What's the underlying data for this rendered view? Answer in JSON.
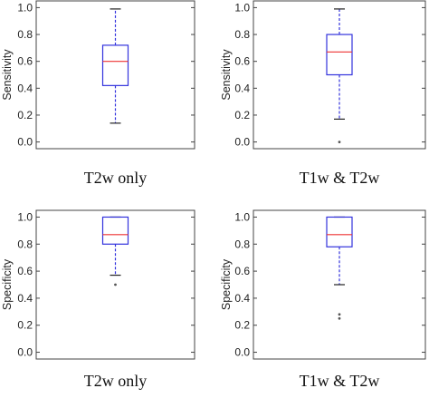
{
  "chart_data": [
    {
      "type": "box",
      "title": "T2w only",
      "ylabel": "Sensitivity",
      "ylim": [
        -0.05,
        1.05
      ],
      "yticks": [
        "0.0",
        "0.2",
        "0.4",
        "0.6",
        "0.8",
        "1.0"
      ],
      "box": {
        "whisker_low": 0.14,
        "q1": 0.42,
        "median": 0.6,
        "q3": 0.72,
        "whisker_high": 0.99
      },
      "outliers": [],
      "grid": false
    },
    {
      "type": "box",
      "title": "T1w & T2w",
      "ylabel": "Sensitivity",
      "ylim": [
        -0.05,
        1.05
      ],
      "yticks": [
        "0.0",
        "0.2",
        "0.4",
        "0.6",
        "0.8",
        "1.0"
      ],
      "box": {
        "whisker_low": 0.17,
        "q1": 0.5,
        "median": 0.67,
        "q3": 0.8,
        "whisker_high": 0.99
      },
      "outliers": [
        0.0
      ],
      "grid": false
    },
    {
      "type": "box",
      "title": "T2w only",
      "ylabel": "Specificity",
      "ylim": [
        -0.05,
        1.05
      ],
      "yticks": [
        "0.0",
        "0.2",
        "0.4",
        "0.6",
        "0.8",
        "1.0"
      ],
      "box": {
        "whisker_low": 0.57,
        "q1": 0.8,
        "median": 0.87,
        "q3": 1.0,
        "whisker_high": 1.0
      },
      "outliers": [
        0.5
      ],
      "grid": false
    },
    {
      "type": "box",
      "title": "T1w & T2w",
      "ylabel": "Specificity",
      "ylim": [
        -0.05,
        1.05
      ],
      "yticks": [
        "0.0",
        "0.2",
        "0.4",
        "0.6",
        "0.8",
        "1.0"
      ],
      "box": {
        "whisker_low": 0.5,
        "q1": 0.78,
        "median": 0.87,
        "q3": 1.0,
        "whisker_high": 1.0
      },
      "outliers": [
        0.28,
        0.25
      ],
      "grid": false
    }
  ],
  "colors": {
    "box": "#3333dd",
    "median": "#ee3333",
    "whisker": "#3333dd",
    "axes": "#444444",
    "outlier": "#555555"
  }
}
